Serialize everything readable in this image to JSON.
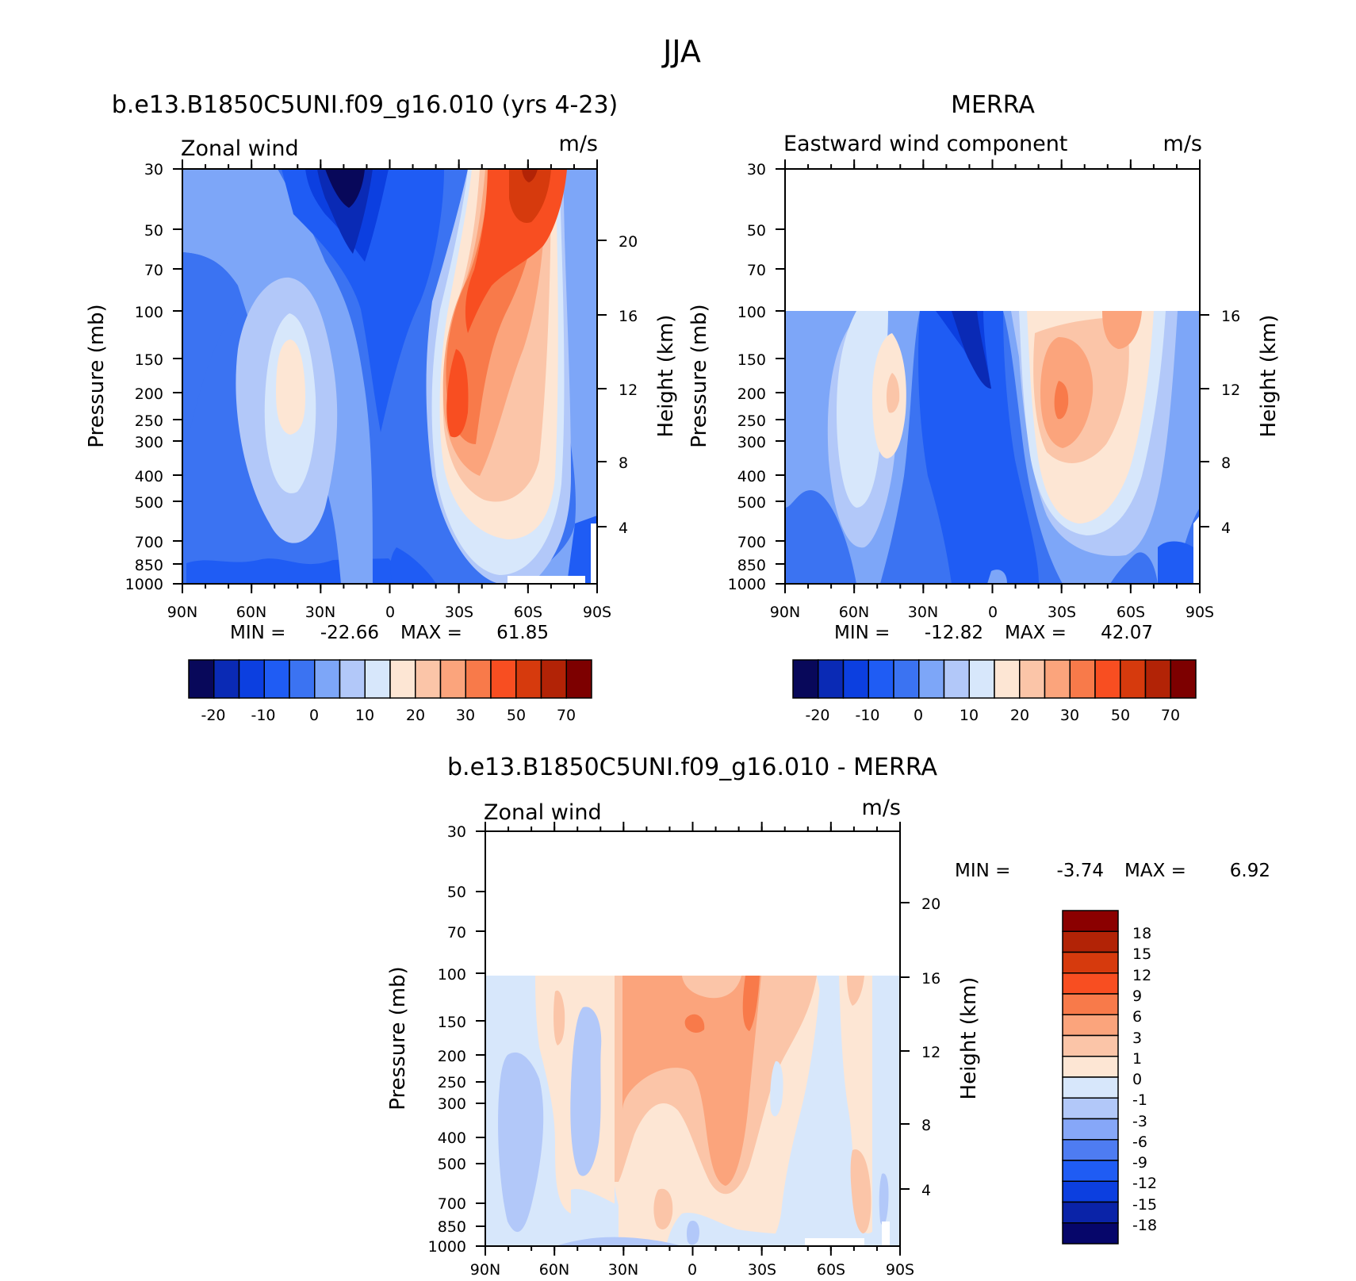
{
  "page_title": "JJA",
  "colors": {
    "panel_palette": [
      "#08085a",
      "#0a2ab5",
      "#0c3fe0",
      "#1f5cf4",
      "#3b73f2",
      "#7da6f8",
      "#b2c8f9",
      "#d7e7fb",
      "#fde6d4",
      "#fbc5a8",
      "#fba47c",
      "#f87a4a",
      "#f84e21",
      "#d63a0d",
      "#b22306",
      "#7d0000"
    ],
    "diff_palette": [
      "#06066a",
      "#0a23a8",
      "#0c3fe0",
      "#1f5cf4",
      "#4e7cf2",
      "#86a7f8",
      "#b2c8f9",
      "#d7e7fb",
      "#fde6d4",
      "#fbc5a8",
      "#fba47c",
      "#f87a4a",
      "#f84e21",
      "#d63a0d",
      "#b22306",
      "#8b0000"
    ]
  },
  "chart_data": [
    {
      "type": "heatmap",
      "title": "b.e13.B1850C5UNI.f09_g16.010 (yrs 4-23)",
      "left_label": "Zonal wind",
      "right_label": "m/s",
      "ylabel": "Pressure (mb)",
      "y2label": "Height (km)",
      "x_ticks": [
        "90N",
        "60N",
        "30N",
        "0",
        "30S",
        "60S",
        "90S"
      ],
      "y_ticks": [
        "30",
        "50",
        "70",
        "100",
        "150",
        "200",
        "250",
        "300",
        "400",
        "500",
        "700",
        "850",
        "1000"
      ],
      "y2_ticks": [
        "20",
        "16",
        "12",
        "8",
        "4"
      ],
      "min_label": "MIN =",
      "min_value": "-22.66",
      "max_label": "MAX =",
      "max_value": "61.85",
      "colorbar_labels": [
        "-20",
        "-10",
        "0",
        "10",
        "20",
        "30",
        "50",
        "70"
      ]
    },
    {
      "type": "heatmap",
      "title": "MERRA",
      "left_label": "Eastward wind component",
      "right_label": "m/s",
      "ylabel": "Pressure (mb)",
      "y2label": "Height (km)",
      "x_ticks": [
        "90N",
        "60N",
        "30N",
        "0",
        "30S",
        "60S",
        "90S"
      ],
      "y_ticks": [
        "30",
        "50",
        "70",
        "100",
        "150",
        "200",
        "250",
        "300",
        "400",
        "500",
        "700",
        "850",
        "1000"
      ],
      "y2_ticks": [
        "16",
        "12",
        "8",
        "4"
      ],
      "min_label": "MIN =",
      "min_value": "-12.82",
      "max_label": "MAX =",
      "max_value": "42.07",
      "colorbar_labels": [
        "-20",
        "-10",
        "0",
        "10",
        "20",
        "30",
        "50",
        "70"
      ]
    },
    {
      "type": "heatmap",
      "title": "b.e13.B1850C5UNI.f09_g16.010 - MERRA",
      "left_label": "Zonal wind",
      "right_label": "m/s",
      "ylabel": "Pressure (mb)",
      "y2label": "Height (km)",
      "x_ticks": [
        "90N",
        "60N",
        "30N",
        "0",
        "30S",
        "60S",
        "90S"
      ],
      "y_ticks": [
        "30",
        "50",
        "70",
        "100",
        "150",
        "200",
        "250",
        "300",
        "400",
        "500",
        "700",
        "850",
        "1000"
      ],
      "y2_ticks": [
        "20",
        "16",
        "12",
        "8",
        "4"
      ],
      "min_label": "MIN =",
      "min_value": "-3.74",
      "max_label": "MAX =",
      "max_value": "6.92",
      "colorbar_labels": [
        "18",
        "15",
        "12",
        "9",
        "6",
        "3",
        "1",
        "0",
        "-1",
        "-3",
        "-6",
        "-9",
        "-12",
        "-15",
        "-18"
      ]
    }
  ]
}
